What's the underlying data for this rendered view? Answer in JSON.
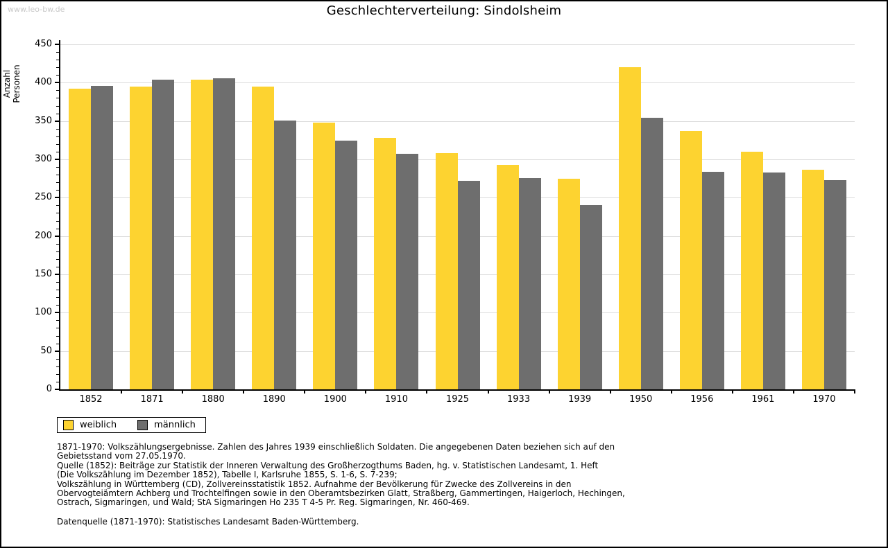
{
  "watermark": "www.leo-bw.de",
  "title": "Geschlechterverteilung: Sindolsheim",
  "chart_data": {
    "type": "bar",
    "title": "Geschlechterverteilung: Sindolsheim",
    "xlabel": "",
    "ylabel": "Anzahl Personen",
    "categories": [
      "1852",
      "1871",
      "1880",
      "1890",
      "1900",
      "1910",
      "1925",
      "1933",
      "1939",
      "1950",
      "1956",
      "1961",
      "1970"
    ],
    "series": [
      {
        "name": "weiblich",
        "color": "#fdd330",
        "values": [
          392,
          395,
          404,
          395,
          348,
          328,
          308,
          293,
          275,
          420,
          337,
          310,
          286
        ]
      },
      {
        "name": "männlich",
        "color": "#6e6e6e",
        "values": [
          396,
          404,
          406,
          351,
          324,
          307,
          272,
          276,
          240,
          354,
          284,
          283,
          273
        ]
      }
    ],
    "ylim": [
      0,
      450
    ],
    "ytick_step": 50,
    "yminor_step": 10,
    "grid": true,
    "legend_position": "bottom-left"
  },
  "colors": {
    "gridline": "#dcdcdc",
    "axis": "#000000",
    "watermark_text": "#c8c8c8"
  },
  "footer": {
    "lines": [
      "1871-1970: Volkszählungsergebnisse. Zahlen des Jahres 1939 einschließlich Soldaten. Die angegebenen Daten beziehen sich auf den",
      "Gebietsstand vom 27.05.1970.",
      "Quelle (1852): Beiträge zur Statistik der Inneren Verwaltung des Großherzogthums Baden, hg. v. Statistischen Landesamt, 1. Heft",
      "(Die Volkszählung im Dezember 1852), Tabelle I, Karlsruhe 1855, S. 1-6, S. 7-239;",
      "Volkszählung in Württemberg (CD), Zollvereinsstatistik 1852. Aufnahme der Bevölkerung für Zwecke des Zollvereins in den",
      "Obervogteiämtern Achberg und Trochtelfingen sowie in den Oberamtsbezirken Glatt, Straßberg, Gammertingen, Haigerloch, Hechingen,",
      "Ostrach, Sigmaringen, und Wald; StA Sigmaringen Ho 235 T 4-5 Pr. Reg. Sigmaringen, Nr. 460-469."
    ],
    "datenquelle": "Datenquelle (1871-1970): Statistisches Landesamt Baden-Württemberg."
  }
}
